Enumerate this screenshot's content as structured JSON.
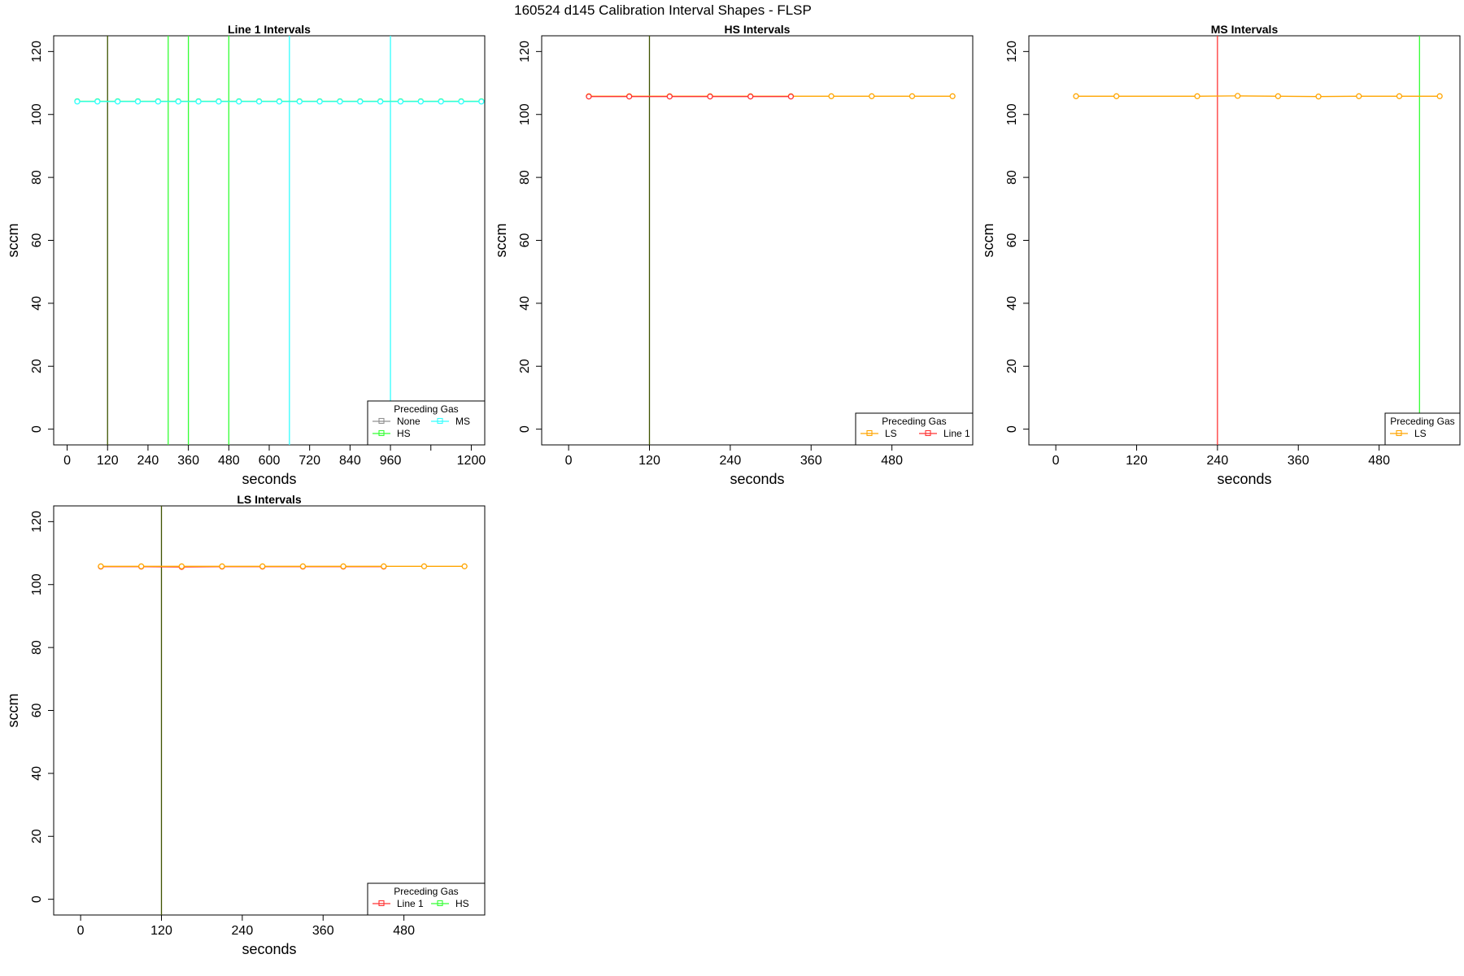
{
  "suptitle": "160524   d145   Calibration Interval Shapes - FLSP",
  "colors": {
    "None": "#909090",
    "HS": "#33ff33",
    "MS": "#33ffff",
    "LS": "#ffa500",
    "Line 1": "#ff3333",
    "dark_vline": "#3d5200"
  },
  "chart_data": [
    {
      "type": "line",
      "title": "Line 1 Intervals",
      "xlabel": "seconds",
      "ylabel": "sccm",
      "xlim": [
        -40,
        1240
      ],
      "ylim": [
        -5,
        125
      ],
      "xticks": [
        0,
        120,
        240,
        360,
        480,
        600,
        720,
        840,
        960,
        1080,
        1200
      ],
      "xtick_labels": [
        "0",
        "120",
        "240",
        "360",
        "480",
        "600",
        "720",
        "840",
        "960",
        "",
        "1200"
      ],
      "yticks": [
        0,
        20,
        40,
        60,
        80,
        100,
        120
      ],
      "legend": {
        "title": "Preceding Gas",
        "position": "bottom-right",
        "columns": 2,
        "entries": [
          {
            "label": "None",
            "color_key": "None"
          },
          {
            "label": "MS",
            "color_key": "MS"
          },
          {
            "label": "HS",
            "color_key": "HS"
          }
        ]
      },
      "vlines": [
        {
          "x": 120,
          "color_key": "dark_vline"
        },
        {
          "x": 300,
          "color_key": "HS"
        },
        {
          "x": 360,
          "color_key": "HS"
        },
        {
          "x": 480,
          "color_key": "HS"
        },
        {
          "x": 660,
          "color_key": "MS"
        },
        {
          "x": 960,
          "color_key": "MS"
        }
      ],
      "series": [
        {
          "color_key": "HS",
          "x": [
            30,
            90,
            150,
            210,
            270,
            330,
            390,
            450,
            510,
            570,
            630,
            690,
            750,
            810,
            870,
            930,
            990,
            1050,
            1110,
            1170,
            1230
          ],
          "y": [
            104.2,
            104.2,
            104.2,
            104.2,
            104.2,
            104.2,
            104.2,
            104.2,
            104.2,
            104.2,
            104.2,
            104.2,
            104.2,
            104.2,
            104.2,
            104.2,
            104.2,
            104.2,
            104.2,
            104.2,
            104.2
          ]
        },
        {
          "color_key": "MS",
          "x": [
            30,
            90,
            150,
            210,
            270,
            330,
            390,
            450,
            510,
            570,
            630,
            690,
            750,
            810,
            870,
            930,
            990,
            1050,
            1110,
            1170,
            1230
          ],
          "y": [
            104.1,
            104.1,
            104.1,
            104.1,
            104.1,
            104.1,
            104.1,
            104.1,
            104.1,
            104.1,
            104.1,
            104.1,
            104.1,
            104.1,
            104.1,
            104.1,
            104.1,
            104.1,
            104.1,
            104.1,
            104.1
          ]
        }
      ]
    },
    {
      "type": "line",
      "title": "HS Intervals",
      "xlabel": "seconds",
      "ylabel": "sccm",
      "xlim": [
        -40,
        600
      ],
      "ylim": [
        -5,
        125
      ],
      "xticks": [
        0,
        120,
        240,
        360,
        480
      ],
      "xtick_labels": [
        "0",
        "120",
        "240",
        "360",
        "480"
      ],
      "yticks": [
        0,
        20,
        40,
        60,
        80,
        100,
        120
      ],
      "legend": {
        "title": "Preceding Gas",
        "position": "bottom-right",
        "columns": 2,
        "entries": [
          {
            "label": "LS",
            "color_key": "LS"
          },
          {
            "label": "Line 1",
            "color_key": "Line 1"
          }
        ]
      },
      "vlines": [
        {
          "x": 120,
          "color_key": "dark_vline"
        }
      ],
      "series": [
        {
          "color_key": "LS",
          "x": [
            30,
            90,
            150,
            210,
            270,
            330,
            390,
            450,
            510,
            570
          ],
          "y": [
            105.8,
            105.8,
            105.8,
            105.8,
            105.8,
            105.8,
            105.8,
            105.8,
            105.8,
            105.8
          ]
        },
        {
          "color_key": "Line 1",
          "x": [
            30,
            90,
            150,
            210,
            270,
            330
          ],
          "y": [
            105.7,
            105.7,
            105.7,
            105.7,
            105.7,
            105.7
          ]
        }
      ]
    },
    {
      "type": "line",
      "title": "MS Intervals",
      "xlabel": "seconds",
      "ylabel": "sccm",
      "xlim": [
        -40,
        600
      ],
      "ylim": [
        -5,
        125
      ],
      "xticks": [
        0,
        120,
        240,
        360,
        480
      ],
      "xtick_labels": [
        "0",
        "120",
        "240",
        "360",
        "480"
      ],
      "yticks": [
        0,
        20,
        40,
        60,
        80,
        100,
        120
      ],
      "legend": {
        "title": "Preceding Gas",
        "position": "bottom-right",
        "columns": 1,
        "entries": [
          {
            "label": "LS",
            "color_key": "LS"
          }
        ]
      },
      "vlines": [
        {
          "x": 240,
          "color_key": "Line 1"
        },
        {
          "x": 540,
          "color_key": "HS"
        }
      ],
      "series": [
        {
          "color_key": "LS",
          "x": [
            30,
            90,
            210,
            270,
            330,
            390,
            450,
            510,
            570
          ],
          "y": [
            105.8,
            105.8,
            105.8,
            105.9,
            105.8,
            105.7,
            105.8,
            105.8,
            105.8
          ]
        }
      ]
    },
    {
      "type": "line",
      "title": "LS Intervals",
      "xlabel": "seconds",
      "ylabel": "sccm",
      "xlim": [
        -40,
        600
      ],
      "ylim": [
        -5,
        125
      ],
      "xticks": [
        0,
        120,
        240,
        360,
        480
      ],
      "xtick_labels": [
        "0",
        "120",
        "240",
        "360",
        "480"
      ],
      "yticks": [
        0,
        20,
        40,
        60,
        80,
        100,
        120
      ],
      "legend": {
        "title": "Preceding Gas",
        "position": "bottom-right",
        "columns": 2,
        "entries": [
          {
            "label": "Line 1",
            "color_key": "Line 1"
          },
          {
            "label": "HS",
            "color_key": "HS"
          }
        ]
      },
      "vlines": [
        {
          "x": 120,
          "color_key": "dark_vline"
        }
      ],
      "series": [
        {
          "color_key": "Line 1",
          "x": [
            30,
            90,
            150,
            210,
            270,
            330,
            390,
            450
          ],
          "y": [
            105.7,
            105.7,
            105.6,
            105.7,
            105.7,
            105.7,
            105.7,
            105.7
          ]
        },
        {
          "color_key": "LS",
          "x": [
            30,
            90,
            150,
            210,
            270,
            330,
            390,
            450,
            510,
            570
          ],
          "y": [
            105.8,
            105.8,
            105.8,
            105.8,
            105.8,
            105.8,
            105.8,
            105.8,
            105.8,
            105.8
          ]
        }
      ]
    }
  ]
}
